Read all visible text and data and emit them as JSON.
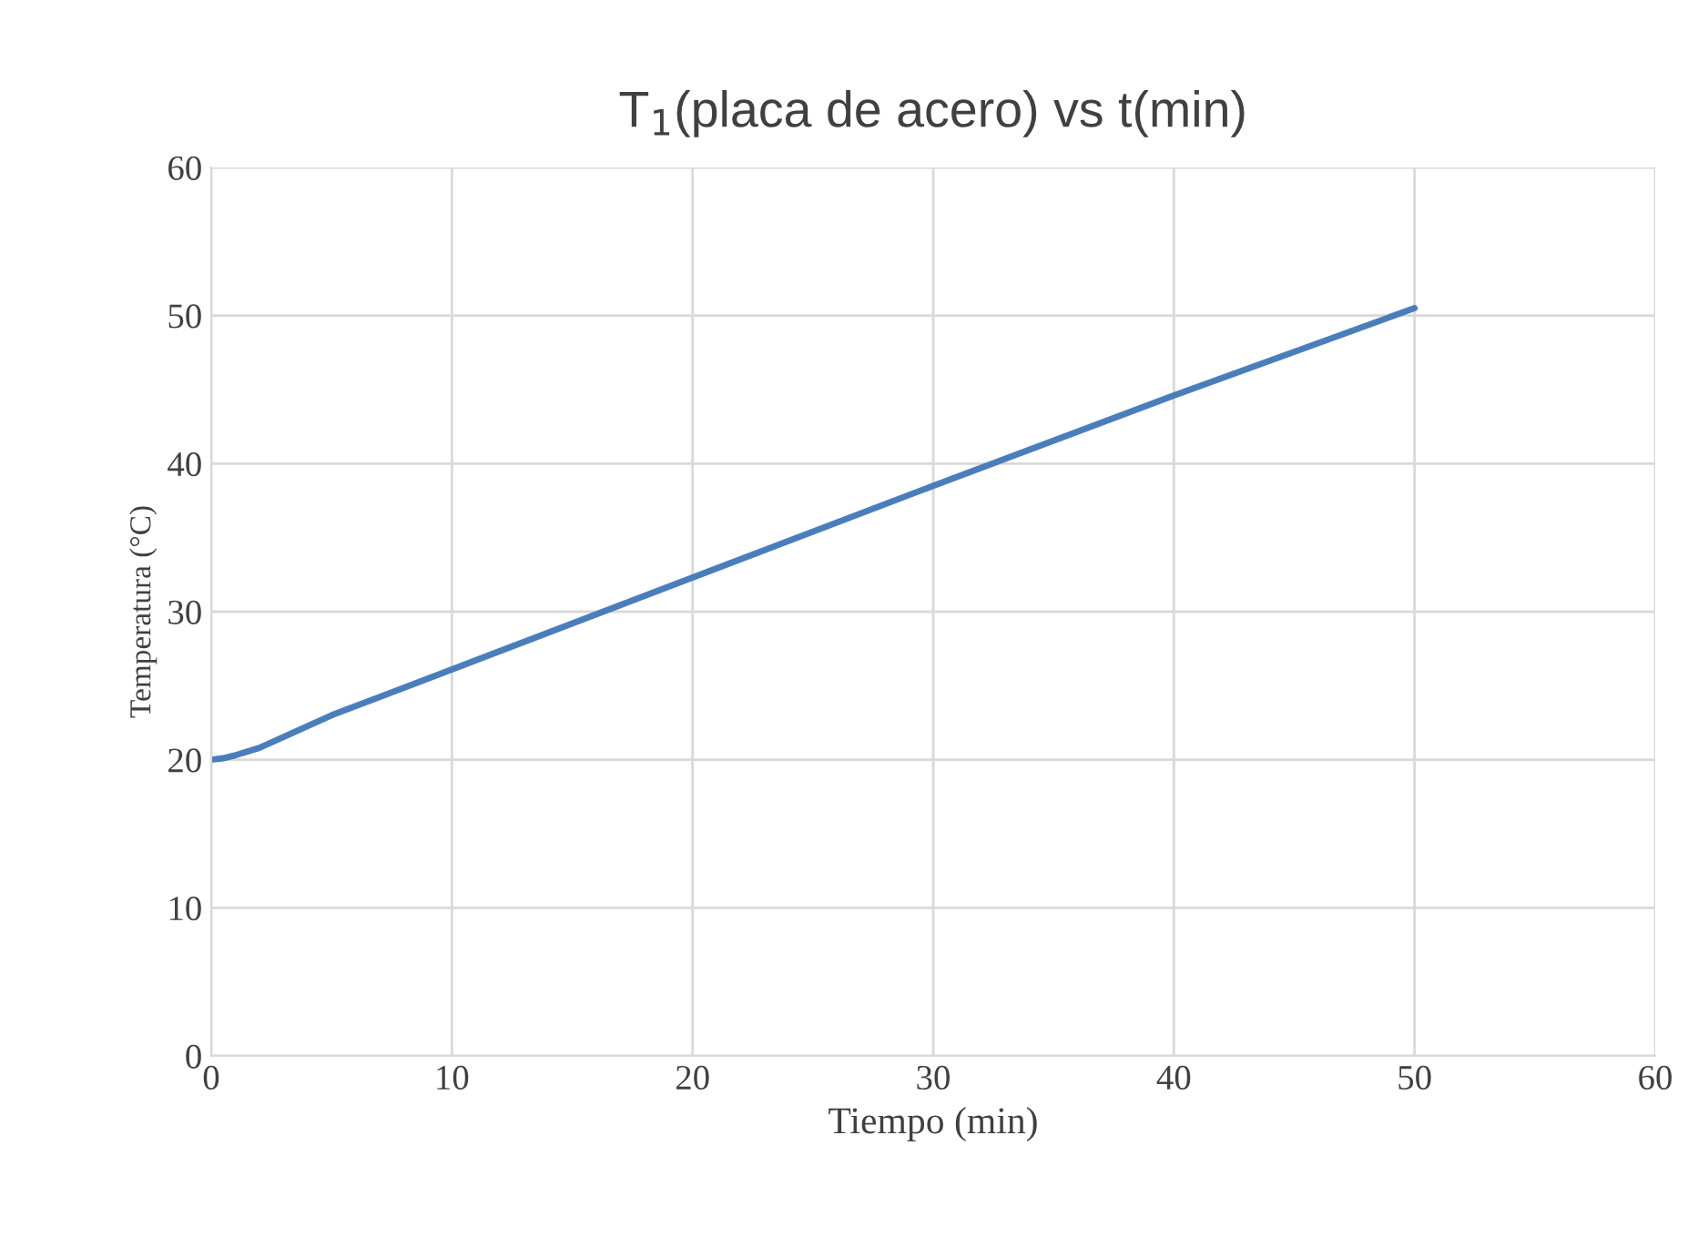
{
  "chart_data": {
    "type": "line",
    "title": "T$_{1}$(placa de acero) vs t(min)",
    "xlabel": "Tiempo (min)",
    "ylabel": "Temperatura (°C)",
    "x": [
      0,
      0.5,
      1,
      2,
      5,
      10,
      20,
      30,
      40,
      50
    ],
    "series": [
      {
        "color": "#4a7ebb",
        "values": [
          20,
          20.1,
          20.3,
          20.8,
          23.0,
          26.1,
          32.3,
          38.5,
          44.6,
          50.5
        ]
      }
    ],
    "xlim": [
      0,
      60
    ],
    "xticks": [
      0,
      10,
      20,
      30,
      40,
      50,
      60
    ],
    "ylim": [
      0,
      60
    ],
    "yticks": [
      0,
      10,
      20,
      30,
      40,
      50,
      60
    ],
    "grid": true,
    "marker": "none",
    "line_style": "solid"
  }
}
